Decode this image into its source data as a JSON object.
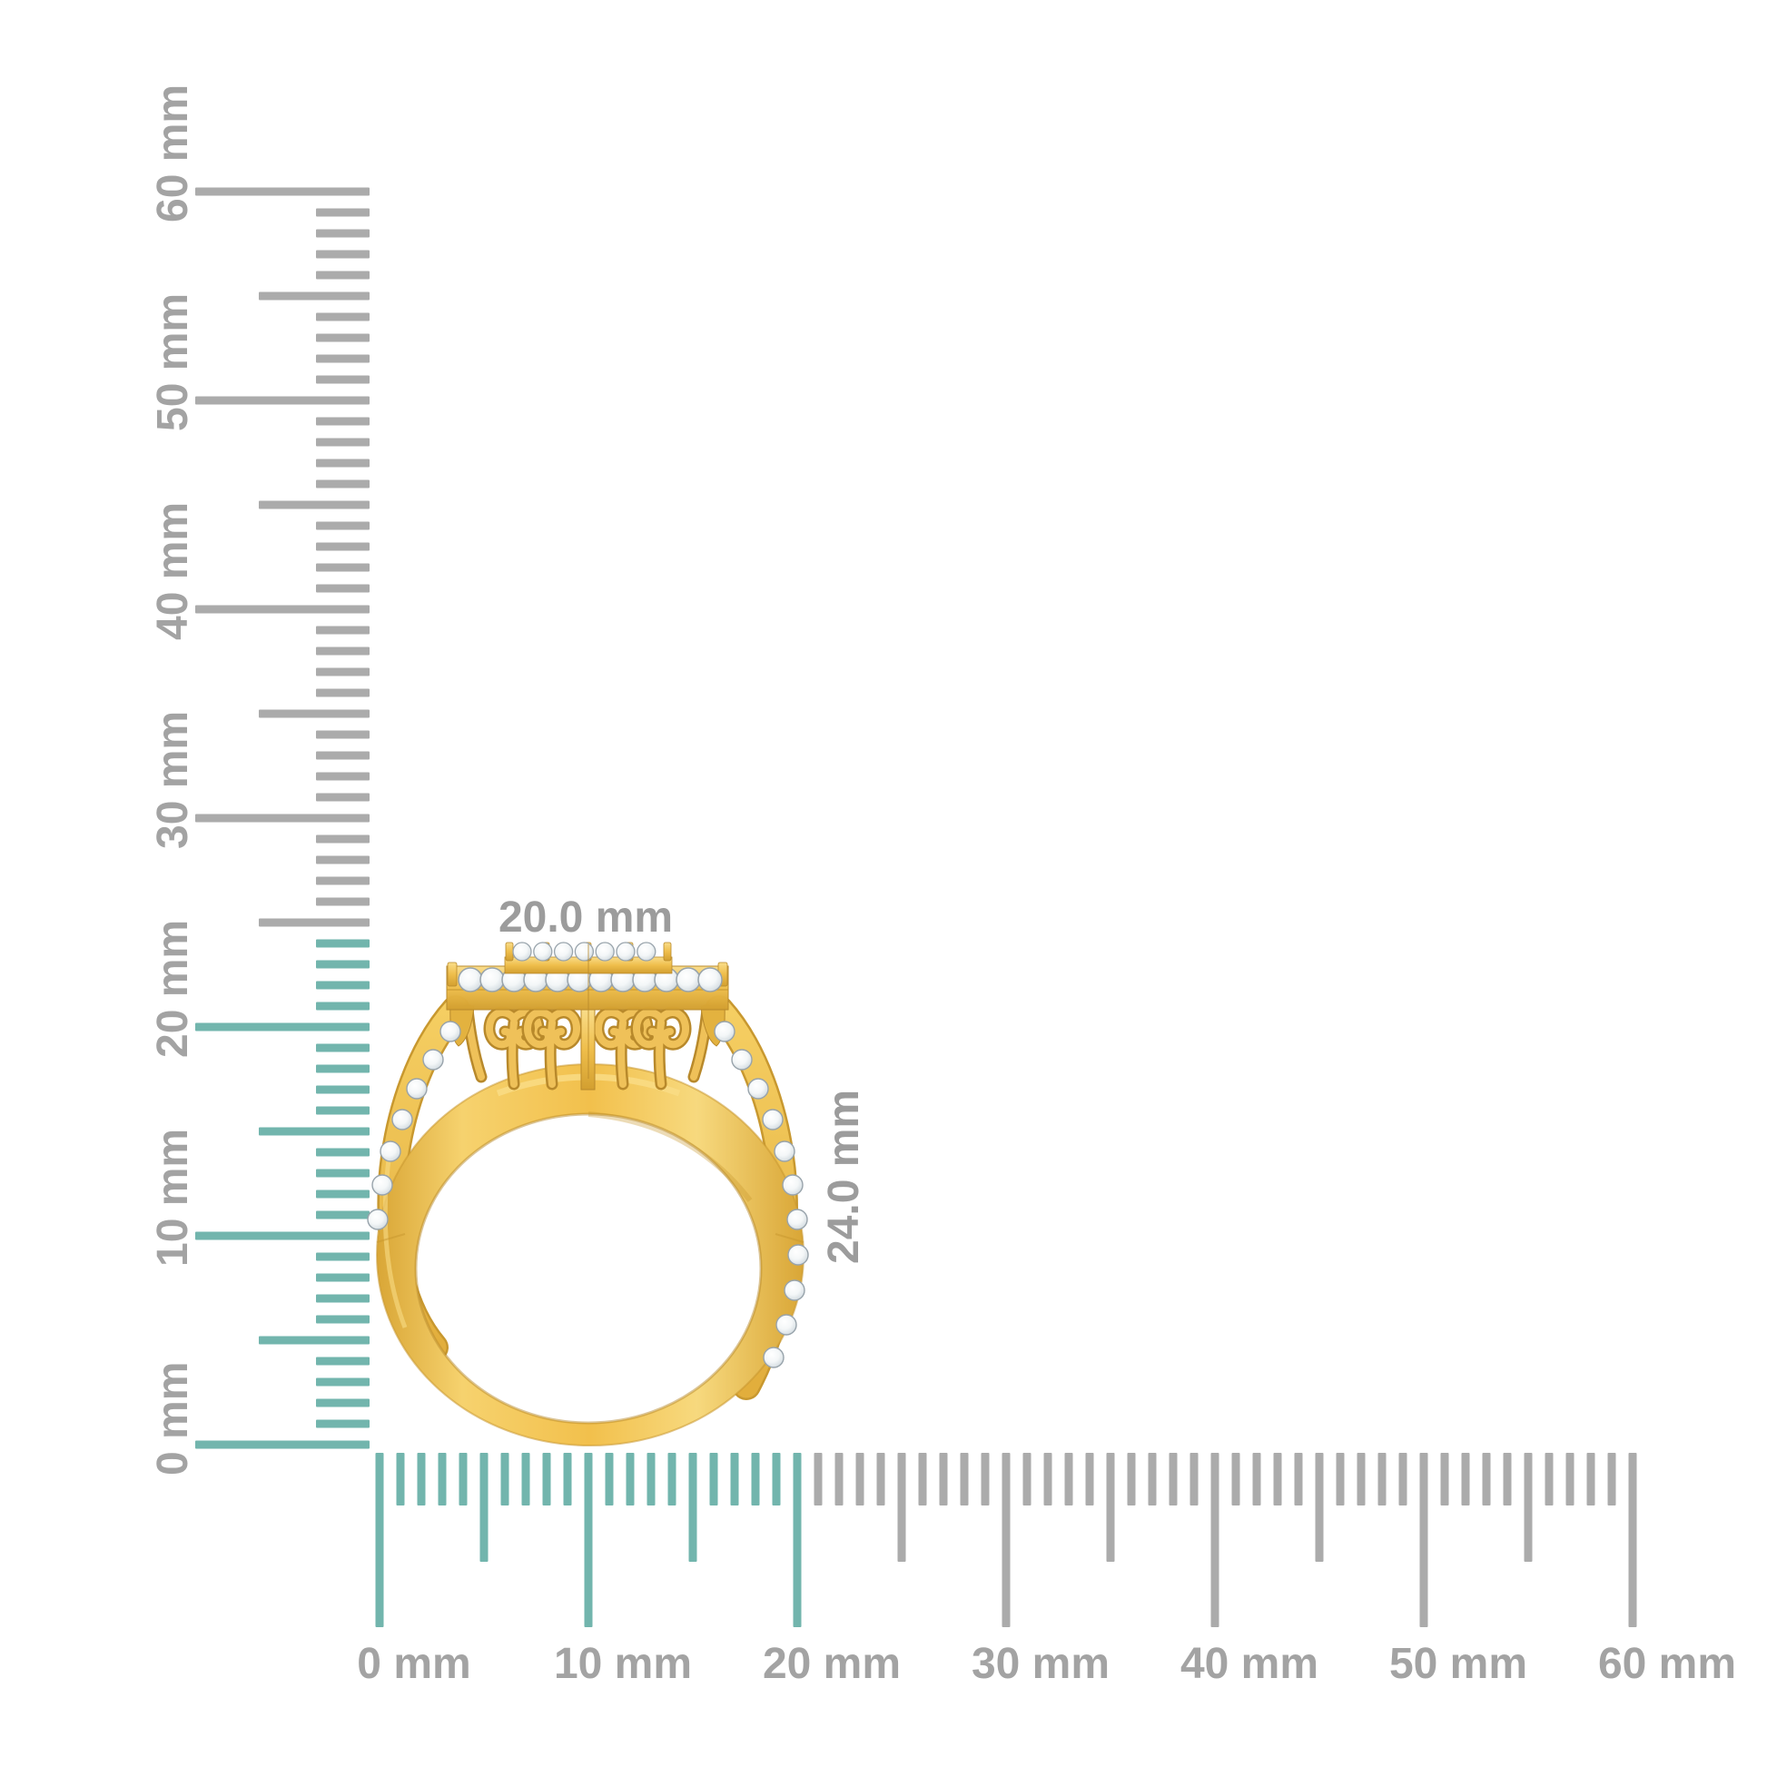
{
  "scene": {
    "background": "#FFFFFF",
    "subject_name": "gold-diamond-halo-ring-side-view"
  },
  "colors": {
    "ruler_highlight": "#72B5AD",
    "ruler_neutral": "#ABABAB",
    "ruler_label": "#A3A3A3",
    "dimension_label": "#9C9C9C",
    "gold_light": "#F9DC85",
    "gold_base": "#F2C14E",
    "gold_dark": "#D9A636",
    "gold_deep": "#C8982F",
    "gold_outline": "#B8892B",
    "diamond_edge": "#98A3AB",
    "white_gap": "#FFFFFF"
  },
  "vertical_ruler": {
    "unit": "mm",
    "min_mm": 0,
    "max_mm": 60,
    "major_step_mm": 10,
    "mid_step_mm": 5,
    "minor_step_mm": 1,
    "highlighted_span_mm": 24,
    "labels": [
      "0 mm",
      "10 mm",
      "20 mm",
      "30 mm",
      "40 mm",
      "50 mm",
      "60 mm"
    ]
  },
  "horizontal_ruler": {
    "unit": "mm",
    "min_mm": 0,
    "max_mm": 60,
    "major_step_mm": 10,
    "mid_step_mm": 5,
    "minor_step_mm": 1,
    "highlighted_span_mm": 20,
    "labels": [
      "0 mm",
      "10 mm",
      "20 mm",
      "30 mm",
      "40 mm",
      "50 mm",
      "60 mm"
    ]
  },
  "annotations": {
    "width_label": "20.0 mm",
    "height_label": "24.0 mm"
  }
}
